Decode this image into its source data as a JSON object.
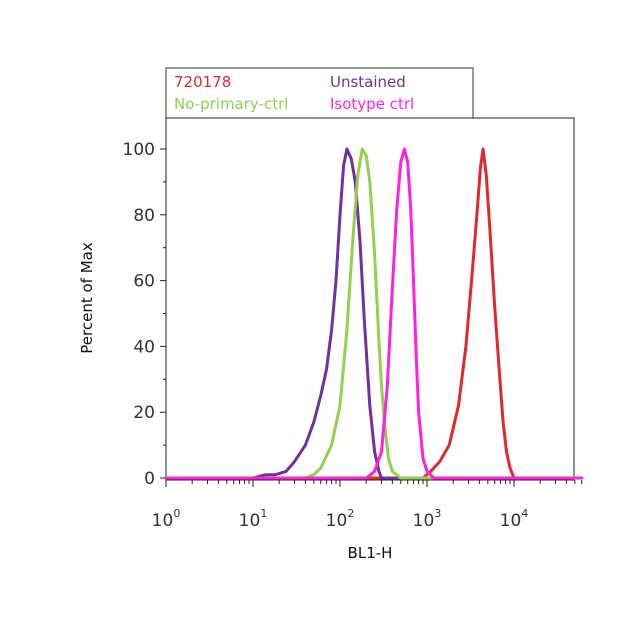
{
  "chart_data": {
    "type": "line",
    "xlabel": "BL1-H",
    "ylabel": "Percent of Max",
    "x_scale": "log",
    "xlim": [
      1,
      60000
    ],
    "ylim": [
      0,
      110
    ],
    "x_ticks": [
      {
        "base": "10",
        "exp": "0",
        "value": 1
      },
      {
        "base": "10",
        "exp": "1",
        "value": 10
      },
      {
        "base": "10",
        "exp": "2",
        "value": 100
      },
      {
        "base": "10",
        "exp": "3",
        "value": 1000
      },
      {
        "base": "10",
        "exp": "4",
        "value": 10000
      }
    ],
    "y_ticks": [
      "0",
      "20",
      "40",
      "60",
      "80",
      "100"
    ],
    "grid": false,
    "legend_position": "top",
    "series": [
      {
        "name": "720178",
        "color": "#e0282e",
        "x": [
          1,
          500,
          900,
          1100,
          1400,
          1800,
          2300,
          2800,
          3300,
          3800,
          4100,
          4400,
          4800,
          5300,
          6000,
          6800,
          7500,
          8200,
          9000,
          10000,
          12000,
          60000
        ],
        "y": [
          0,
          0,
          0,
          2,
          5,
          10,
          22,
          40,
          62,
          82,
          94,
          100,
          92,
          75,
          52,
          32,
          17,
          8,
          3,
          0,
          0,
          0
        ]
      },
      {
        "name": "Unstained",
        "color": "#7030a0",
        "x": [
          1,
          10,
          14,
          18,
          24,
          30,
          40,
          50,
          60,
          70,
          80,
          90,
          100,
          110,
          120,
          135,
          150,
          170,
          190,
          220,
          250,
          280,
          300,
          60000
        ],
        "y": [
          0,
          0,
          1,
          1,
          2,
          5,
          10,
          17,
          25,
          33,
          45,
          60,
          80,
          95,
          100,
          97,
          90,
          72,
          48,
          22,
          8,
          2,
          0,
          0
        ]
      },
      {
        "name": "No-primary-ctrl",
        "color": "#92d050",
        "x": [
          1,
          40,
          50,
          60,
          80,
          100,
          120,
          140,
          160,
          180,
          200,
          220,
          250,
          280,
          300,
          330,
          360,
          400,
          500,
          60000
        ],
        "y": [
          0,
          0,
          1,
          3,
          10,
          22,
          45,
          72,
          92,
          100,
          98,
          90,
          68,
          42,
          28,
          15,
          6,
          2,
          0,
          0
        ]
      },
      {
        "name": "Isotype ctrl",
        "color": "#ff22dd",
        "x": [
          1,
          200,
          250,
          300,
          350,
          400,
          450,
          500,
          550,
          600,
          650,
          700,
          750,
          800,
          900,
          1000,
          1200,
          60000
        ],
        "y": [
          0,
          0,
          2,
          8,
          28,
          58,
          82,
          96,
          100,
          96,
          82,
          60,
          38,
          20,
          6,
          2,
          0,
          0
        ]
      }
    ]
  }
}
